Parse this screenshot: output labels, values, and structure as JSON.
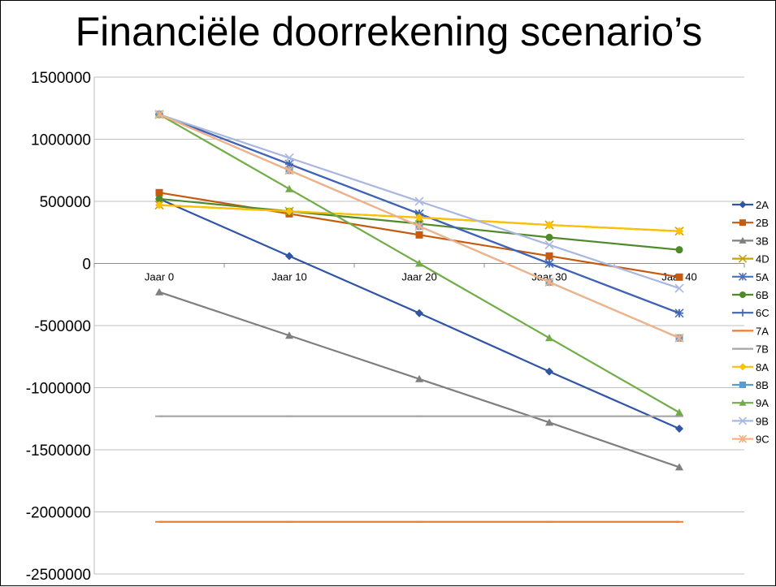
{
  "chart_data": {
    "type": "line",
    "title": "Financiële doorrekening scenario’s",
    "categories": [
      "Jaar 0",
      "Jaar 10",
      "Jaar 20",
      "Jaar 30",
      "Jaar 40"
    ],
    "ylim": [
      -2500000,
      1500000
    ],
    "yticks": [
      "1500000",
      "1000000",
      "500000",
      "0",
      "-500000",
      "-1000000",
      "-1500000",
      "-2000000",
      "-2500000"
    ],
    "ytick_values": [
      1500000,
      1000000,
      500000,
      0,
      -500000,
      -1000000,
      -1500000,
      -2000000,
      -2500000
    ],
    "grid": true,
    "legend_position": "right",
    "series": [
      {
        "name": "2A",
        "color": "#2F55A4",
        "marker": "diamond",
        "values": [
          520000,
          60000,
          -400000,
          -870000,
          -1330000
        ]
      },
      {
        "name": "2B",
        "color": "#C55A11",
        "marker": "square",
        "values": [
          570000,
          400000,
          230000,
          60000,
          -110000
        ]
      },
      {
        "name": "3B",
        "color": "#7F7F7F",
        "marker": "triangle",
        "values": [
          -230000,
          -580000,
          -930000,
          -1280000,
          -1640000
        ]
      },
      {
        "name": "4D",
        "color": "#C9A100",
        "marker": "x",
        "values": [
          470000,
          420000,
          370000,
          310000,
          260000
        ]
      },
      {
        "name": "5A",
        "color": "#4A73B5",
        "marker": "star",
        "values": [
          1200000,
          800000,
          400000,
          0,
          -400000
        ]
      },
      {
        "name": "6B",
        "color": "#4E8A2A",
        "marker": "circle",
        "values": [
          520000,
          420000,
          320000,
          210000,
          110000
        ]
      },
      {
        "name": "6C",
        "color": "#3F63B5",
        "marker": "plus",
        "values": [
          1200000,
          800000,
          400000,
          0,
          -400000
        ]
      },
      {
        "name": "7A",
        "color": "#ED7D31",
        "marker": "dash",
        "values": [
          -2080000,
          -2080000,
          -2080000,
          -2080000,
          -2080000
        ]
      },
      {
        "name": "7B",
        "color": "#A5A5A5",
        "marker": "dash",
        "values": [
          -1230000,
          -1230000,
          -1230000,
          -1230000,
          -1230000
        ]
      },
      {
        "name": "8A",
        "color": "#FFC000",
        "marker": "diamond",
        "values": [
          470000,
          420000,
          370000,
          310000,
          260000
        ]
      },
      {
        "name": "8B",
        "color": "#5B9BD5",
        "marker": "square",
        "values": [
          1200000,
          750000,
          300000,
          -150000,
          -600000
        ]
      },
      {
        "name": "9A",
        "color": "#70AD47",
        "marker": "triangle",
        "values": [
          1200000,
          600000,
          0,
          -600000,
          -1200000
        ]
      },
      {
        "name": "9B",
        "color": "#A9B8E0",
        "marker": "x",
        "values": [
          1200000,
          850000,
          500000,
          150000,
          -200000
        ]
      },
      {
        "name": "9C",
        "color": "#F4B183",
        "marker": "star",
        "values": [
          1200000,
          750000,
          300000,
          -150000,
          -600000
        ]
      }
    ]
  }
}
